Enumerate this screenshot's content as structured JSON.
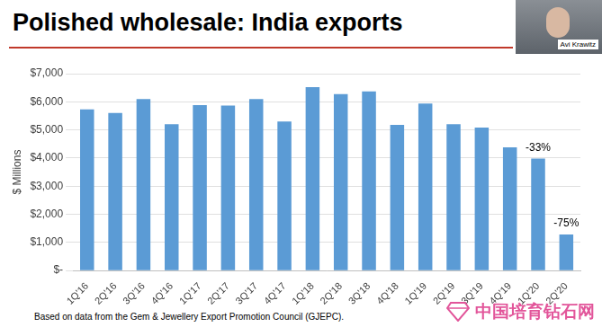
{
  "chart_data": {
    "type": "bar",
    "title": "Polished wholesale: India exports",
    "y_label": "$ Millions",
    "categories": [
      "1Q'16",
      "2Q'16",
      "3Q'16",
      "4Q'16",
      "1Q'17",
      "2Q'17",
      "3Q'17",
      "4Q'17",
      "1Q'18",
      "2Q'18",
      "3Q'18",
      "4Q'18",
      "1Q'19",
      "2Q'19",
      "3Q'19",
      "4Q'19",
      "1Q'20",
      "2Q'20"
    ],
    "values": [
      5730,
      5600,
      6100,
      5200,
      5880,
      5870,
      6100,
      5300,
      6520,
      6270,
      6370,
      5180,
      5940,
      5200,
      5080,
      4380,
      3980,
      1280
    ],
    "color": "#5b9bd5",
    "ylim": [
      0,
      7000
    ],
    "yticks": [
      {
        "value": 0,
        "label": "$-"
      },
      {
        "value": 1000,
        "label": "$1,000"
      },
      {
        "value": 2000,
        "label": "$2,000"
      },
      {
        "value": 3000,
        "label": "$3,000"
      },
      {
        "value": 4000,
        "label": "$4,000"
      },
      {
        "value": 5000,
        "label": "$5,000"
      },
      {
        "value": 6000,
        "label": "$6,000"
      },
      {
        "value": 7000,
        "label": "$7,000"
      }
    ],
    "grid": true,
    "annotations": [
      {
        "category": "1Q'20",
        "text": "-33%"
      },
      {
        "category": "2Q'20",
        "text": "-75%"
      }
    ],
    "source": "Based on data from the Gem & Jewellery Export Promotion Council (GJEPC)."
  },
  "overlay": {
    "speaker": "Avi Krawitz",
    "watermark": "中国培育钻石网"
  }
}
